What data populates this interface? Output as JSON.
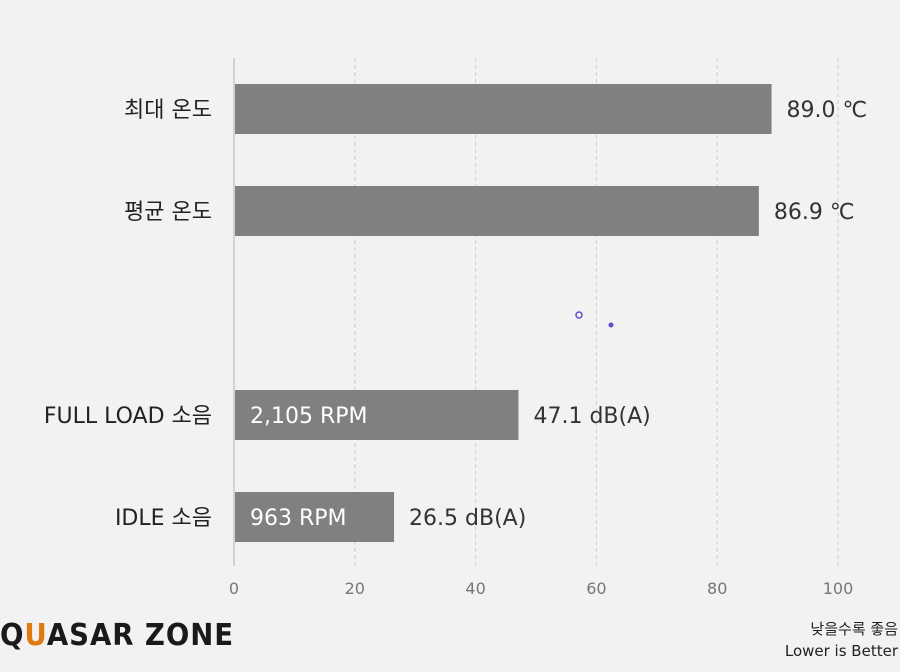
{
  "chart_data": {
    "type": "bar",
    "orientation": "horizontal",
    "categories": [
      "최대 온도",
      "평균 온도",
      "FULL LOAD 소음",
      "IDLE 소음"
    ],
    "values": [
      89.0,
      86.9,
      47.1,
      26.5
    ],
    "value_labels": [
      "89.0 ℃",
      "86.9 ℃",
      "47.1 dB(A)",
      "26.5 dB(A)"
    ],
    "inner_labels": [
      "",
      "",
      "2,105 RPM",
      "963 RPM"
    ],
    "xlim": [
      0,
      100
    ],
    "xticks": [
      0,
      20,
      40,
      60,
      80,
      100
    ],
    "grid": true,
    "bar_color": "#808080"
  },
  "brand": {
    "logo_text": "QUASAR ZONE",
    "accent_color": "#e07a10"
  },
  "note": {
    "line1": "낮을수록 좋음",
    "line2": "Lower is Better"
  }
}
